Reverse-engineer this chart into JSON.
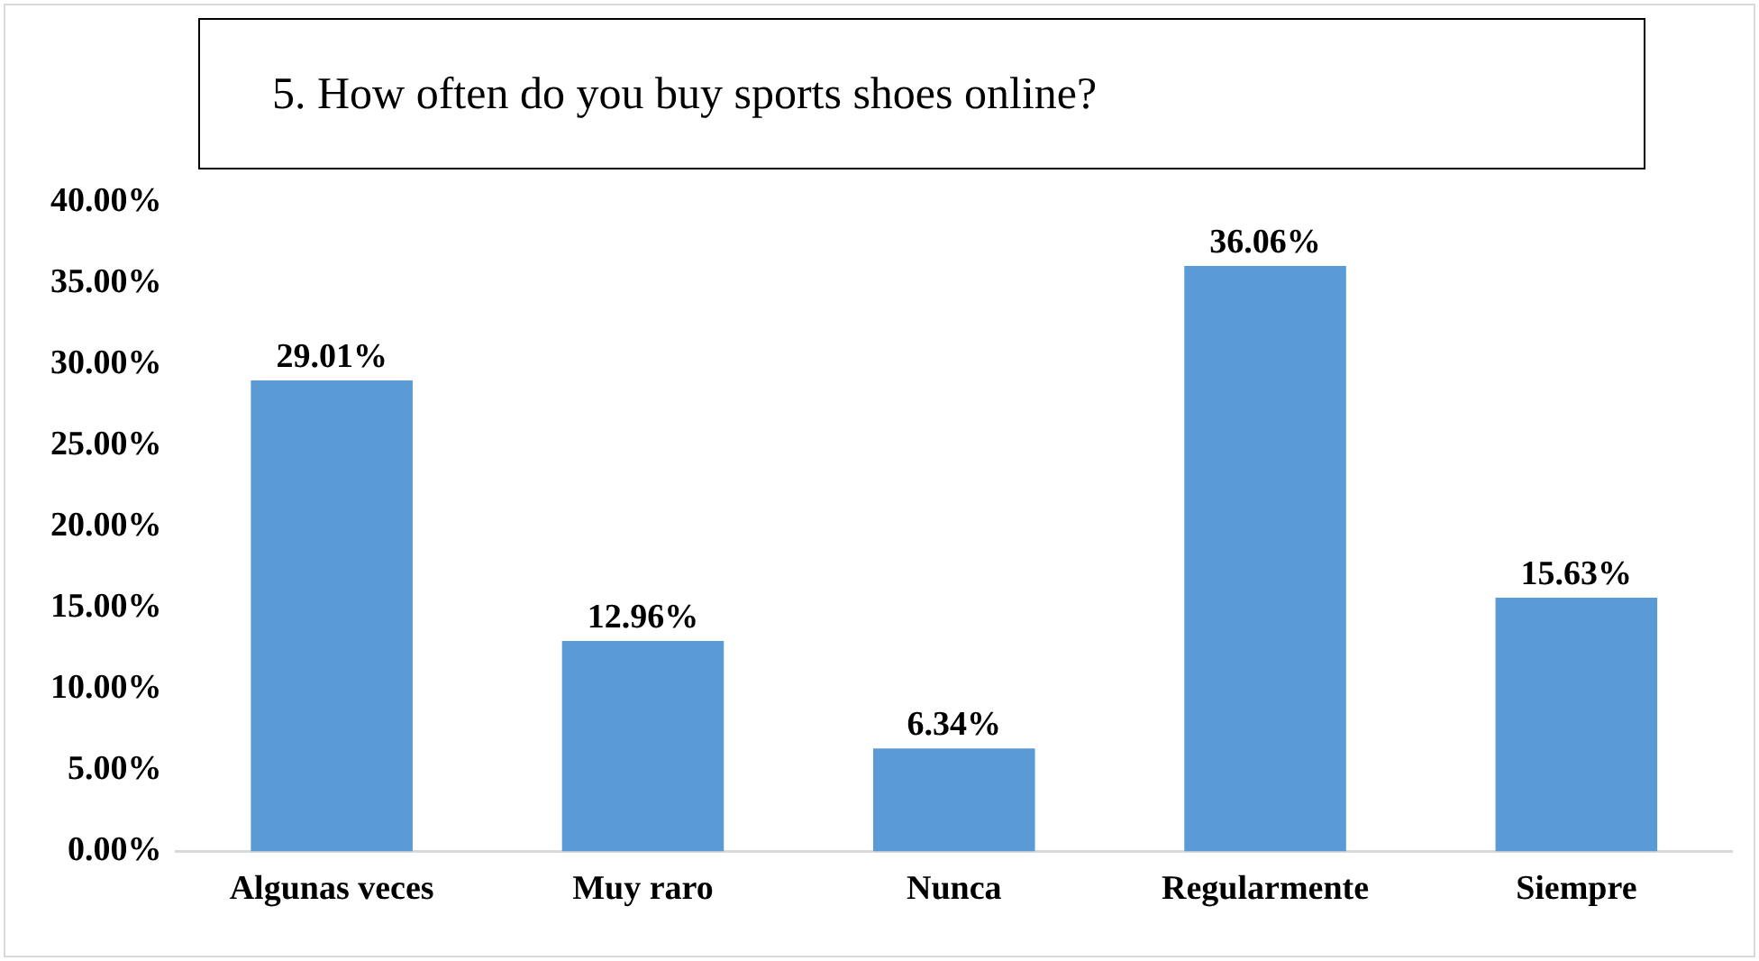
{
  "chart_data": {
    "type": "bar",
    "title": "5. How often do you buy sports shoes online?",
    "categories": [
      "Algunas veces",
      "Muy raro",
      "Nunca",
      "Regularmente",
      "Siempre"
    ],
    "values": [
      29.01,
      12.96,
      6.34,
      36.06,
      15.63
    ],
    "value_labels": [
      "29.01%",
      "12.96%",
      "6.34%",
      "36.06%",
      "15.63%"
    ],
    "color": "#5b9bd5",
    "ylim": [
      0,
      40
    ],
    "yticks": [
      {
        "value": 0,
        "label": "0.00%"
      },
      {
        "value": 5,
        "label": "5.00%"
      },
      {
        "value": 10,
        "label": "10.00%"
      },
      {
        "value": 15,
        "label": "15.00%"
      },
      {
        "value": 20,
        "label": "20.00%"
      },
      {
        "value": 25,
        "label": "25.00%"
      },
      {
        "value": 30,
        "label": "30.00%"
      },
      {
        "value": 35,
        "label": "35.00%"
      },
      {
        "value": 40,
        "label": "40.00%"
      }
    ],
    "grid": false,
    "legend": false
  }
}
